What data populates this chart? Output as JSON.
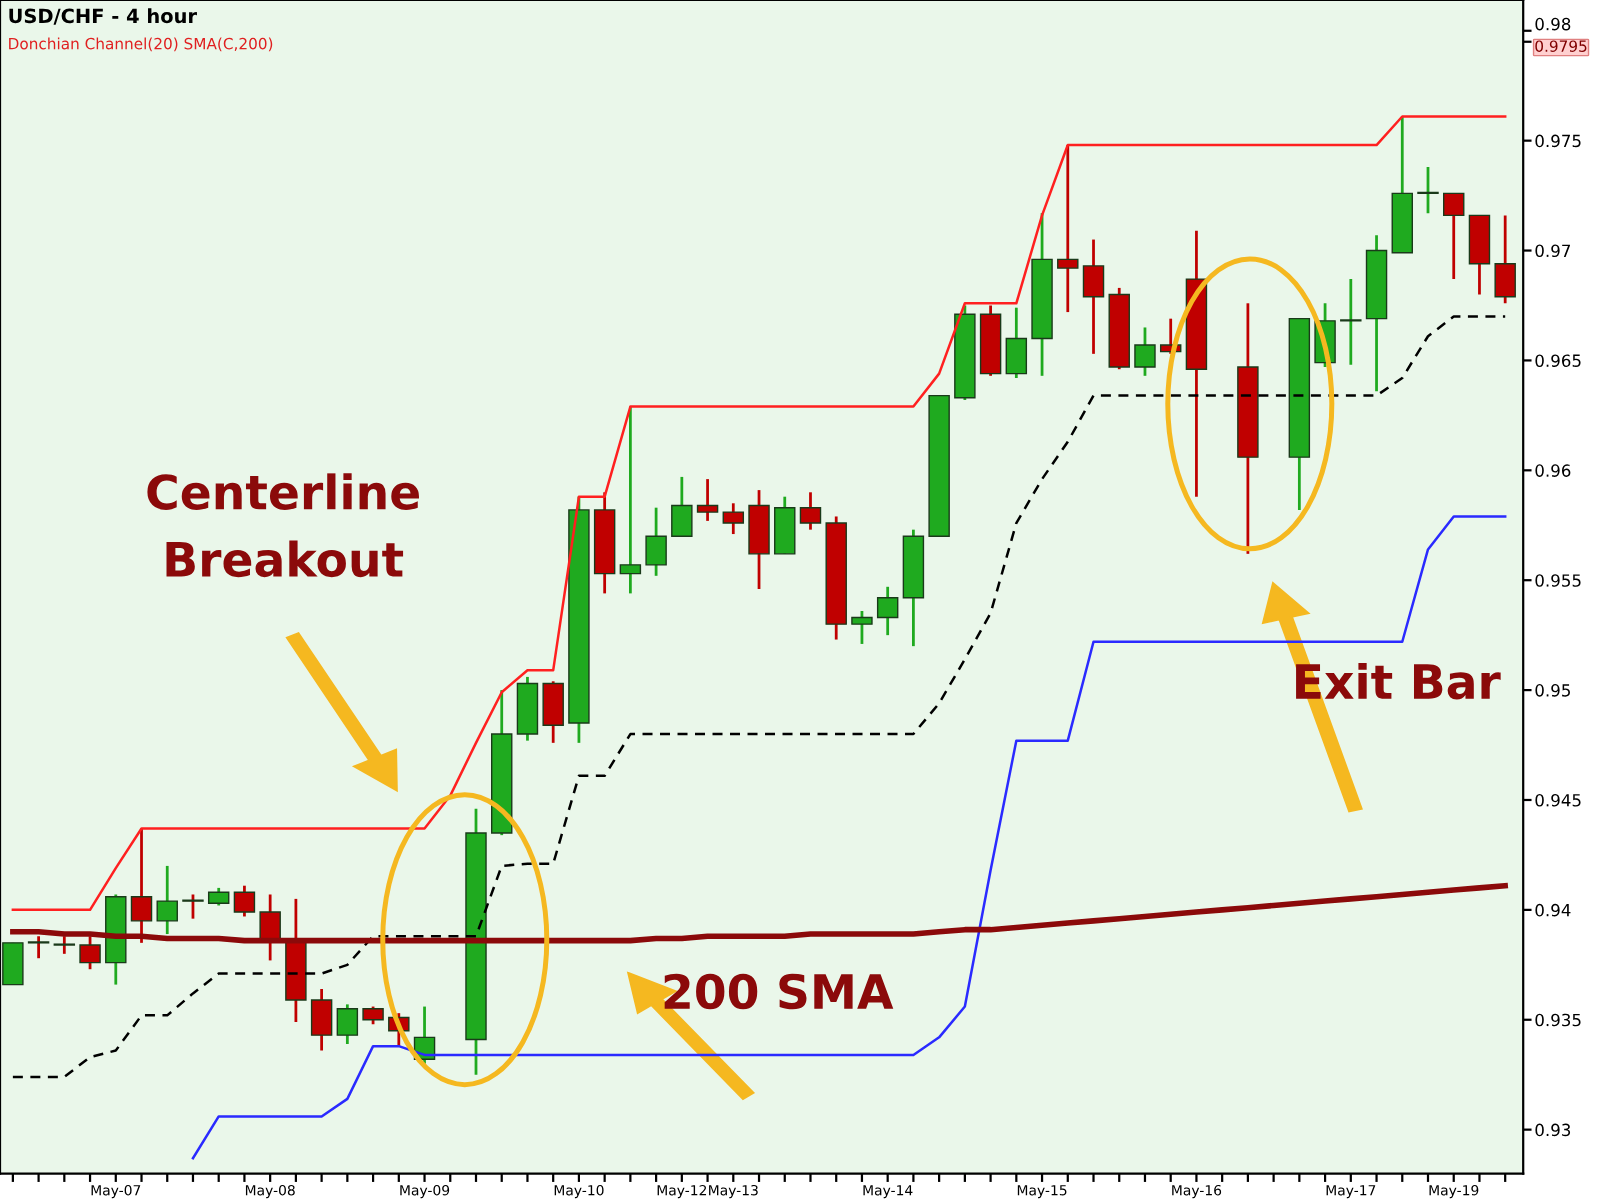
{
  "chart_data": {
    "type": "candlestick",
    "title": "USD/CHF - 4 hour",
    "subtitle": "Donchian Channel(20) SMA(C,200)",
    "categories": [
      null,
      null,
      null,
      null,
      "May-07",
      null,
      null,
      null,
      null,
      null,
      "May-08",
      null,
      null,
      null,
      null,
      null,
      "May-09",
      null,
      null,
      null,
      null,
      null,
      "May-10",
      null,
      null,
      null,
      "May-12",
      null,
      "May-13",
      null,
      null,
      null,
      null,
      null,
      "May-14",
      null,
      null,
      null,
      null,
      null,
      "May-15",
      null,
      null,
      null,
      null,
      null,
      "May-16",
      null,
      null,
      null,
      null,
      null,
      "May-17",
      null,
      null,
      null,
      "May-19",
      null,
      null
    ],
    "ohlc": [
      [
        0.9366,
        0.9385,
        0.9366,
        0.9385
      ],
      [
        0.9385,
        0.9388,
        0.9378,
        0.9385
      ],
      [
        0.9384,
        0.9388,
        0.938,
        0.9384
      ],
      [
        0.9384,
        0.9388,
        0.9373,
        0.9376
      ],
      [
        0.9376,
        0.9407,
        0.9366,
        0.9406
      ],
      [
        0.9406,
        0.9437,
        0.9385,
        0.9395
      ],
      [
        0.9395,
        0.942,
        0.9389,
        0.9404
      ],
      [
        0.9404,
        0.9407,
        0.9396,
        0.9404
      ],
      [
        0.9403,
        0.941,
        0.9402,
        0.9408
      ],
      [
        0.9408,
        0.9411,
        0.9397,
        0.9399
      ],
      [
        0.9399,
        0.9407,
        0.9377,
        0.9386
      ],
      [
        0.9386,
        0.9405,
        0.9349,
        0.9359
      ],
      [
        0.9359,
        0.9364,
        0.9336,
        0.9343
      ],
      [
        0.9343,
        0.9357,
        0.9339,
        0.9355
      ],
      [
        0.9355,
        0.9356,
        0.9348,
        0.935
      ],
      [
        0.9351,
        0.9353,
        0.9338,
        0.9345
      ],
      [
        0.9332,
        0.9356,
        0.933,
        0.9342
      ],
      null,
      [
        0.9341,
        0.9446,
        0.9325,
        0.9435
      ],
      [
        0.9435,
        0.95,
        0.9434,
        0.948
      ],
      [
        0.948,
        0.9506,
        0.9477,
        0.9503
      ],
      [
        0.9503,
        0.9504,
        0.9476,
        0.9484
      ],
      [
        0.9485,
        0.9588,
        0.9476,
        0.9582
      ],
      [
        0.9582,
        0.959,
        0.9544,
        0.9553
      ],
      [
        0.9553,
        0.9629,
        0.9544,
        0.9557
      ],
      [
        0.9557,
        0.9583,
        0.9552,
        0.957
      ],
      [
        0.957,
        0.9597,
        0.957,
        0.9584
      ],
      [
        0.9584,
        0.9596,
        0.9577,
        0.9581
      ],
      [
        0.9581,
        0.9585,
        0.9571,
        0.9576
      ],
      [
        0.9584,
        0.9591,
        0.9546,
        0.9562
      ],
      [
        0.9562,
        0.9588,
        0.9562,
        0.9583
      ],
      [
        0.9583,
        0.959,
        0.9573,
        0.9576
      ],
      [
        0.9576,
        0.9579,
        0.9523,
        0.953
      ],
      [
        0.953,
        0.9536,
        0.9521,
        0.9533
      ],
      [
        0.9533,
        0.9547,
        0.9525,
        0.9542
      ],
      [
        0.9542,
        0.9573,
        0.952,
        0.957
      ],
      [
        0.957,
        0.9634,
        0.957,
        0.9634
      ],
      [
        0.9633,
        0.9675,
        0.9632,
        0.9671
      ],
      [
        0.9671,
        0.9675,
        0.9643,
        0.9644
      ],
      [
        0.9644,
        0.9674,
        0.9642,
        0.966
      ],
      [
        0.966,
        0.9717,
        0.9643,
        0.9696
      ],
      [
        0.9696,
        0.9748,
        0.9672,
        0.9692
      ],
      [
        0.9693,
        0.9705,
        0.9653,
        0.9679
      ],
      [
        0.968,
        0.9683,
        0.9646,
        0.9647
      ],
      [
        0.9647,
        0.9665,
        0.9643,
        0.9657
      ],
      [
        0.9657,
        0.9669,
        0.9653,
        0.9654
      ],
      [
        0.9687,
        0.9709,
        0.9588,
        0.9646
      ],
      null,
      [
        0.9647,
        0.9676,
        0.9562,
        0.9606
      ],
      null,
      [
        0.9606,
        0.9669,
        0.9582,
        0.9669
      ],
      [
        0.9649,
        0.9676,
        0.9647,
        0.9668
      ],
      [
        0.9668,
        0.9687,
        0.9648,
        0.9668
      ],
      [
        0.9669,
        0.9707,
        0.9636,
        0.97
      ],
      [
        0.9699,
        0.9761,
        0.9699,
        0.9726
      ],
      [
        0.9726,
        0.9738,
        0.9717,
        0.9726
      ],
      [
        0.9726,
        0.9726,
        0.9687,
        0.9716
      ],
      [
        0.9716,
        0.9716,
        0.968,
        0.9694
      ],
      [
        0.9694,
        0.9716,
        0.9676,
        0.9679
      ]
    ],
    "colors": [
      "#1faa1f",
      "#c00000",
      "#c00000",
      "#c00000",
      "#1faa1f",
      "#c00000",
      "#1faa1f",
      "#c00000",
      "#1faa1f",
      "#c00000",
      "#c00000",
      "#c00000",
      "#c00000",
      "#1faa1f",
      "#c00000",
      "#c00000",
      "#1faa1f",
      null,
      "#1faa1f",
      "#1faa1f",
      "#1faa1f",
      "#c00000",
      "#1faa1f",
      "#c00000",
      "#1faa1f",
      "#1faa1f",
      "#1faa1f",
      "#c00000",
      "#c00000",
      "#c00000",
      "#1faa1f",
      "#c00000",
      "#c00000",
      "#1faa1f",
      "#1faa1f",
      "#1faa1f",
      "#1faa1f",
      "#1faa1f",
      "#c00000",
      "#1faa1f",
      "#1faa1f",
      "#c00000",
      "#c00000",
      "#c00000",
      "#1faa1f",
      "#c00000",
      "#c00000",
      null,
      "#c00000",
      null,
      "#1faa1f",
      "#1faa1f",
      "#1faa1f",
      "#1faa1f",
      "#1faa1f",
      "#1faa1f",
      "#c00000",
      "#c00000",
      "#c00000"
    ],
    "series": [
      {
        "type": "line",
        "color": "#ff2020",
        "line_style": "solid",
        "values": [
          0.94,
          0.94,
          0.94,
          0.94,
          0.9419,
          0.9437,
          0.9437,
          0.9437,
          0.9437,
          0.9437,
          0.9437,
          0.9437,
          0.9437,
          0.9437,
          0.9437,
          0.9437,
          0.9437,
          0.9452,
          0.9476,
          0.9499,
          0.9509,
          0.9509,
          0.9588,
          0.9588,
          0.9629,
          0.9629,
          0.9629,
          0.9629,
          0.9629,
          0.9629,
          0.9629,
          0.9629,
          0.9629,
          0.9629,
          0.9629,
          0.9629,
          0.9644,
          0.9676,
          0.9676,
          0.9676,
          0.9716,
          0.9748,
          0.9748,
          0.9748,
          0.9748,
          0.9748,
          0.9748,
          0.9748,
          0.9748,
          0.9748,
          0.9748,
          0.9748,
          0.9748,
          0.9748,
          0.9761,
          0.9761,
          0.9761,
          0.9761,
          0.9761
        ]
      },
      {
        "type": "line",
        "color": "#000000",
        "line_style": "dashed",
        "values": [
          0.9324,
          0.9324,
          0.9324,
          0.9333,
          0.9336,
          0.9352,
          0.9352,
          0.9362,
          0.9371,
          0.9371,
          0.9371,
          0.9371,
          0.9371,
          0.9375,
          0.9388,
          0.9388,
          0.9388,
          0.9388,
          0.9388,
          0.942,
          0.9421,
          0.9421,
          0.9461,
          0.9461,
          0.948,
          0.948,
          0.948,
          0.948,
          0.948,
          0.948,
          0.948,
          0.948,
          0.948,
          0.948,
          0.948,
          0.948,
          0.9494,
          0.9514,
          0.9535,
          0.9576,
          0.9596,
          0.9613,
          0.9634,
          0.9634,
          0.9634,
          0.9634,
          0.9634,
          0.9634,
          0.9634,
          0.9634,
          0.9634,
          0.9634,
          0.9634,
          0.9634,
          0.9642,
          0.9661,
          0.967,
          0.967,
          0.967
        ]
      },
      {
        "type": "line",
        "color": "#2a2aff",
        "line_style": "solid",
        "values": [
          null,
          null,
          null,
          null,
          null,
          null,
          null,
          0.9287,
          0.9306,
          0.9306,
          0.9306,
          0.9306,
          0.9306,
          0.9314,
          0.9338,
          0.9338,
          0.9334,
          0.9334,
          0.9334,
          0.9334,
          0.9334,
          0.9334,
          0.9334,
          0.9334,
          0.9334,
          0.9334,
          0.9334,
          0.9334,
          0.9334,
          0.9334,
          0.9334,
          0.9334,
          0.9334,
          0.9334,
          0.9334,
          0.9334,
          0.9342,
          0.9356,
          0.9418,
          0.9477,
          0.9477,
          0.9477,
          0.9522,
          0.9522,
          0.9522,
          0.9522,
          0.9522,
          0.9522,
          0.9522,
          0.9522,
          0.9522,
          0.9522,
          0.9522,
          0.9522,
          0.9522,
          0.9564,
          0.9579,
          0.9579,
          0.9579
        ]
      },
      {
        "type": "line",
        "color": "#8b0a0a",
        "line_style": "solid",
        "values": [
          0.939,
          0.939,
          0.9389,
          0.9389,
          0.9388,
          0.9388,
          0.9387,
          0.9387,
          0.9387,
          0.9386,
          0.9386,
          0.9386,
          0.9386,
          0.9386,
          0.9386,
          0.9386,
          0.9386,
          0.9386,
          0.9386,
          0.9386,
          0.9386,
          0.9386,
          0.9386,
          0.9386,
          0.9386,
          0.9387,
          0.9387,
          0.9388,
          0.9388,
          0.9388,
          0.9388,
          0.9389,
          0.9389,
          0.9389,
          0.9389,
          0.9389,
          0.939,
          0.9391,
          0.9391,
          0.9392,
          0.9393,
          0.9394,
          0.9395,
          0.9396,
          0.9397,
          0.9398,
          0.9399,
          0.94,
          0.9401,
          0.9402,
          0.9403,
          0.9404,
          0.9405,
          0.9406,
          0.9407,
          0.9408,
          0.9409,
          0.941,
          0.9411
        ]
      }
    ],
    "ylim": [
      0.928,
      0.9814
    ],
    "yticks": [
      0.93,
      0.935,
      0.94,
      0.945,
      0.95,
      0.955,
      0.96,
      0.965,
      0.97,
      0.975,
      0.98,
      {
        "value": 0.9795,
        "label": "0.9795"
      }
    ],
    "annotations": [
      "Centerline\nBreakout",
      "200 SMA",
      "Exit Bar"
    ]
  }
}
